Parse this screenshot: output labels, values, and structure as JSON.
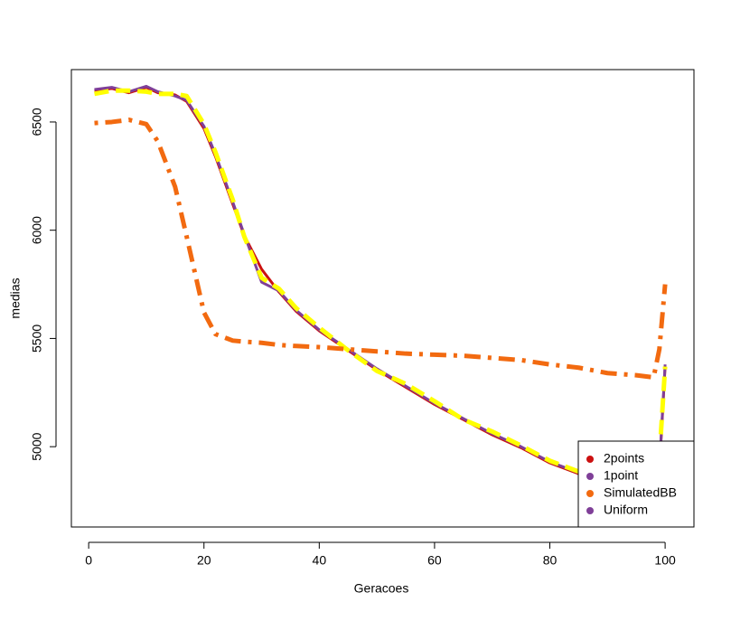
{
  "chart_data": {
    "type": "line",
    "xlabel": "Geracoes",
    "ylabel": "medias",
    "x": [
      1,
      4,
      7,
      10,
      12,
      15,
      17,
      20,
      22,
      25,
      27,
      30,
      33,
      36,
      40,
      45,
      50,
      55,
      60,
      65,
      70,
      75,
      80,
      85,
      90,
      95,
      98,
      99,
      100
    ],
    "series": [
      {
        "name": "2points",
        "color": "#cc1111",
        "line_color": "#cc1111",
        "line_style": "solid",
        "values": [
          6645,
          6655,
          6635,
          6660,
          6635,
          6625,
          6595,
          6470,
          6340,
          6120,
          5975,
          5820,
          5715,
          5625,
          5535,
          5445,
          5355,
          5275,
          5195,
          5125,
          5055,
          4995,
          4925,
          4875,
          4835,
          4795,
          4775,
          4890,
          5370
        ]
      },
      {
        "name": "1point",
        "color": "#7f3f98",
        "line_color": "#7f3f98",
        "line_style": "solid",
        "values": [
          6650,
          6660,
          6640,
          6665,
          6640,
          6620,
          6600,
          6480,
          6350,
          6130,
          5980,
          5760,
          5720,
          5630,
          5540,
          5450,
          5360,
          5280,
          5200,
          5130,
          5060,
          5000,
          4930,
          4880,
          4840,
          4800,
          4780,
          4900,
          5380
        ]
      },
      {
        "name": "Uniform",
        "color": "#7f3f98",
        "line_color": "#ffff00",
        "line_style": "dashed",
        "values": [
          6630,
          6645,
          6645,
          6640,
          6630,
          6630,
          6620,
          6490,
          6360,
          6140,
          5970,
          5780,
          5730,
          5640,
          5550,
          5445,
          5350,
          5290,
          5210,
          5125,
          5070,
          5005,
          4935,
          4885,
          4845,
          4805,
          4785,
          4950,
          5370
        ]
      },
      {
        "name": "SimulatedBB",
        "color": "#f26a10",
        "line_color": "#f26a10",
        "line_style": "dotdash",
        "values": [
          6495,
          6500,
          6510,
          6490,
          6410,
          6200,
          5970,
          5620,
          5520,
          5490,
          5485,
          5480,
          5470,
          5465,
          5460,
          5450,
          5440,
          5430,
          5425,
          5420,
          5410,
          5400,
          5380,
          5365,
          5340,
          5330,
          5320,
          5450,
          5750
        ]
      }
    ],
    "legend_order": [
      0,
      1,
      3,
      2
    ],
    "legend_position": "bottom-right",
    "xlim": [
      -3,
      105
    ],
    "xticks": [
      0,
      20,
      40,
      60,
      80,
      100
    ],
    "ylim": [
      4629,
      6742
    ],
    "yticks": [
      5000,
      5500,
      6000,
      6500
    ]
  }
}
